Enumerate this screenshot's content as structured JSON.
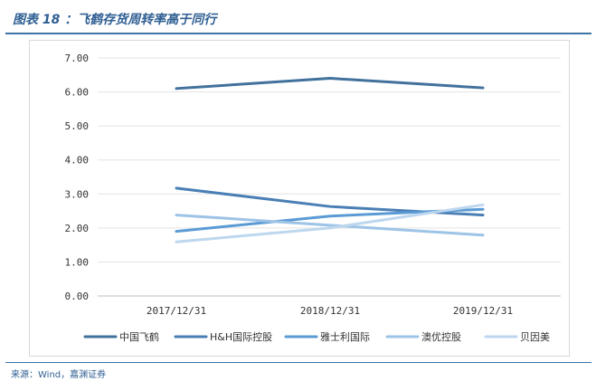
{
  "figure": {
    "title": "图表 18 ：飞鹤存货周转率高于同行",
    "source": "来源：Wind，嘉渊证券"
  },
  "chart_data": {
    "type": "line",
    "categories": [
      "2017/12/31",
      "2018/12/31",
      "2019/12/31"
    ],
    "ylim": [
      0,
      7
    ],
    "yticks": [
      "0.00",
      "1.00",
      "2.00",
      "3.00",
      "4.00",
      "5.00",
      "6.00",
      "7.00"
    ],
    "grid": true,
    "legend_position": "bottom",
    "series": [
      {
        "name": "中国飞鹤",
        "values": [
          6.1,
          6.4,
          6.12
        ],
        "color": "#41719c"
      },
      {
        "name": "H&H国际控股",
        "values": [
          3.17,
          2.63,
          2.38
        ],
        "color": "#4a7fb5"
      },
      {
        "name": "雅士利国际",
        "values": [
          1.9,
          2.35,
          2.55
        ],
        "color": "#5b9bd5"
      },
      {
        "name": "澳优控股",
        "values": [
          2.38,
          2.08,
          1.79
        ],
        "color": "#9dc3e6"
      },
      {
        "name": "贝因美",
        "values": [
          1.59,
          2.0,
          2.68
        ],
        "color": "#bdd7ee"
      }
    ]
  }
}
